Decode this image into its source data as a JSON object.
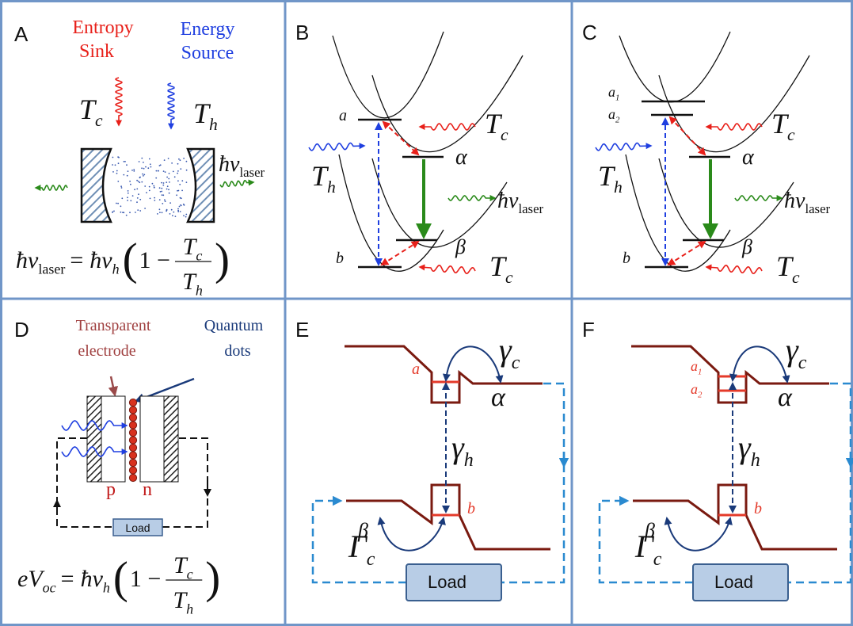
{
  "panels": {
    "A": {
      "label": "A",
      "sink": [
        "Entropy",
        "Sink"
      ],
      "source": [
        "Energy",
        "Source"
      ],
      "tc": {
        "base": "T",
        "sub": "c"
      },
      "th": {
        "base": "T",
        "sub": "h"
      },
      "laser": {
        "base": "ħν",
        "sub": "laser"
      },
      "formula": {
        "lhs": {
          "base": "ħν",
          "sub": "laser"
        },
        "eq": "=",
        "rhs": {
          "base": "ħν",
          "sub": "h"
        },
        "open": "(",
        "mid": "1 −",
        "num": {
          "base": "T",
          "sub": "c"
        },
        "den": {
          "base": "T",
          "sub": "h"
        },
        "close": ")"
      }
    },
    "B": {
      "label": "B",
      "a": "a",
      "b": "b",
      "alpha": "α",
      "beta": "β",
      "th": {
        "base": "T",
        "sub": "h"
      },
      "tc_top": {
        "base": "T",
        "sub": "c"
      },
      "tc_bottom": {
        "base": "T",
        "sub": "c"
      },
      "laser": {
        "base": "ħν",
        "sub": "laser"
      }
    },
    "C": {
      "label": "C",
      "a1": {
        "base": "a",
        "sub": "1"
      },
      "a2": {
        "base": "a",
        "sub": "2"
      },
      "b": "b",
      "alpha": "α",
      "beta": "β",
      "th": {
        "base": "T",
        "sub": "h"
      },
      "tc_top": {
        "base": "T",
        "sub": "c"
      },
      "tc_bottom": {
        "base": "T",
        "sub": "c"
      },
      "laser": {
        "base": "ħν",
        "sub": "laser"
      }
    },
    "D": {
      "label": "D",
      "electrode": [
        "Transparent",
        "electrode"
      ],
      "dots": [
        "Quantum",
        "dots"
      ],
      "p": "p",
      "n": "n",
      "load": "Load",
      "formula": {
        "lhs": {
          "base": "eV",
          "sub": "oc"
        },
        "eq": "=",
        "rhs": {
          "base": "ħν",
          "sub": "h"
        },
        "open": "(",
        "mid": "1 −",
        "num": {
          "base": "T",
          "sub": "c"
        },
        "den": {
          "base": "T",
          "sub": "h"
        },
        "close": ")"
      }
    },
    "E": {
      "label": "E",
      "gamma_c": {
        "base": "γ",
        "sub": "c"
      },
      "a": "a",
      "alpha": "α",
      "gamma_h": {
        "base": "γ",
        "sub": "h"
      },
      "beta": "β",
      "b": "b",
      "Gamma_c": {
        "base": "Γ",
        "sub": "c"
      },
      "load": "Load"
    },
    "F": {
      "label": "F",
      "gamma_c": {
        "base": "γ",
        "sub": "c"
      },
      "a1": {
        "base": "a",
        "sub": "1"
      },
      "a2": {
        "base": "a",
        "sub": "2"
      },
      "alpha": "α",
      "gamma_h": {
        "base": "γ",
        "sub": "h"
      },
      "beta": "β",
      "b": "b",
      "Gamma_c": {
        "base": "Γ",
        "sub": "c"
      },
      "load": "Load"
    }
  }
}
